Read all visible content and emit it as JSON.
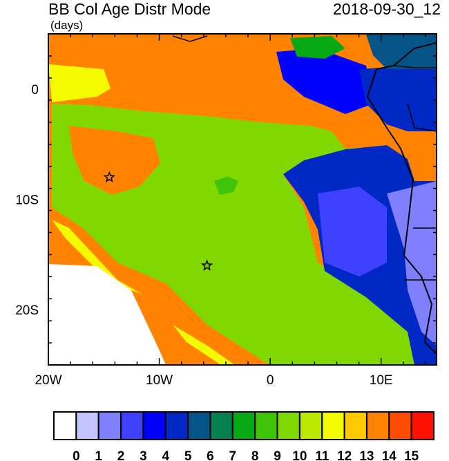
{
  "title": "BB Col Age Distr Mode",
  "units": "(days)",
  "datetime": "2018-09-30_12",
  "map": {
    "lon_range": [
      -20,
      15
    ],
    "lat_range": [
      -25,
      5
    ],
    "lon_labels": [
      {
        "lon": -20,
        "text": "20W"
      },
      {
        "lon": -10,
        "text": "10W"
      },
      {
        "lon": 0,
        "text": "0"
      },
      {
        "lon": 10,
        "text": "10E"
      }
    ],
    "lat_labels": [
      {
        "lat": 0,
        "text": "0"
      },
      {
        "lat": -10,
        "text": "10S"
      },
      {
        "lat": -20,
        "text": "20S"
      }
    ],
    "markers": [
      {
        "type": "star",
        "lon": -14.5,
        "lat": -8
      },
      {
        "type": "star",
        "lon": -5.7,
        "lat": -16
      }
    ]
  },
  "colorbar": {
    "labels": [
      "0",
      "1",
      "2",
      "3",
      "4",
      "5",
      "6",
      "7",
      "8",
      "9",
      "10",
      "11",
      "12",
      "13",
      "14",
      "15"
    ],
    "colors": [
      "#FFFFFF",
      "#C4C4FF",
      "#8080FF",
      "#4040FF",
      "#0000FF",
      "#0028C4",
      "#045488",
      "#068050",
      "#06A814",
      "#40C40A",
      "#80D800",
      "#BCE800",
      "#F4FA00",
      "#FFC800",
      "#FF8200",
      "#FF4C00",
      "#FF1000"
    ]
  }
}
